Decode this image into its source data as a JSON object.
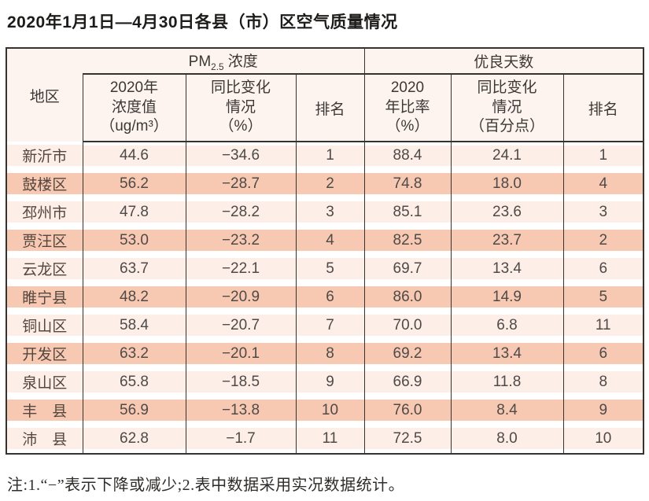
{
  "title": "2020年1月1日—4月30日各县（市）区空气质量情况",
  "table": {
    "region_header": "地区",
    "group_headers": {
      "pm25": {
        "base": "PM",
        "sub": "2.5",
        "rest": " 浓度"
      },
      "good_days": "优良天数"
    },
    "sub_headers": {
      "pm_value": "2020年\n浓度值\n（ug/m³）",
      "pm_change": "同比变化\n情况\n（%）",
      "pm_rank": "排名",
      "gd_rate": "2020\n年比率\n（%）",
      "gd_change": "同比变化\n情况\n（百分点）",
      "gd_rank": "排名"
    },
    "rows": [
      {
        "region": "新沂市",
        "pm_value": "44.6",
        "pm_change": "−34.6",
        "pm_rank": "1",
        "gd_rate": "88.4",
        "gd_change": "24.1",
        "gd_rank": "1"
      },
      {
        "region": "鼓楼区",
        "pm_value": "56.2",
        "pm_change": "−28.7",
        "pm_rank": "2",
        "gd_rate": "74.8",
        "gd_change": "18.0",
        "gd_rank": "4"
      },
      {
        "region": "邳州市",
        "pm_value": "47.8",
        "pm_change": "−28.2",
        "pm_rank": "3",
        "gd_rate": "85.1",
        "gd_change": "23.6",
        "gd_rank": "3"
      },
      {
        "region": "贾汪区",
        "pm_value": "53.0",
        "pm_change": "−23.2",
        "pm_rank": "4",
        "gd_rate": "82.5",
        "gd_change": "23.7",
        "gd_rank": "2"
      },
      {
        "region": "云龙区",
        "pm_value": "63.7",
        "pm_change": "−22.1",
        "pm_rank": "5",
        "gd_rate": "69.7",
        "gd_change": "13.4",
        "gd_rank": "6"
      },
      {
        "region": "睢宁县",
        "pm_value": "48.2",
        "pm_change": "−20.9",
        "pm_rank": "6",
        "gd_rate": "86.0",
        "gd_change": "14.9",
        "gd_rank": "5"
      },
      {
        "region": "铜山区",
        "pm_value": "58.4",
        "pm_change": "−20.7",
        "pm_rank": "7",
        "gd_rate": "70.0",
        "gd_change": "6.8",
        "gd_rank": "11"
      },
      {
        "region": "开发区",
        "pm_value": "63.2",
        "pm_change": "−20.1",
        "pm_rank": "8",
        "gd_rate": "69.2",
        "gd_change": "13.4",
        "gd_rank": "6"
      },
      {
        "region": "泉山区",
        "pm_value": "65.8",
        "pm_change": "−18.5",
        "pm_rank": "9",
        "gd_rate": "66.9",
        "gd_change": "11.8",
        "gd_rank": "8"
      },
      {
        "region": "丰　县",
        "pm_value": "56.9",
        "pm_change": "−13.8",
        "pm_rank": "10",
        "gd_rate": "76.0",
        "gd_change": "8.4",
        "gd_rank": "9"
      },
      {
        "region": "沛　县",
        "pm_value": "62.8",
        "pm_change": "−1.7",
        "pm_rank": "11",
        "gd_rate": "72.5",
        "gd_change": "8.0",
        "gd_rank": "10"
      }
    ]
  },
  "note": "注:1.“−”表示下降或减少;2.表中数据采用实况数据统计。",
  "colors": {
    "row_salmon": "#f7c9b3",
    "row_light": "#fdeee7",
    "header_bg": "#fdf4f0",
    "border": "#363230"
  }
}
